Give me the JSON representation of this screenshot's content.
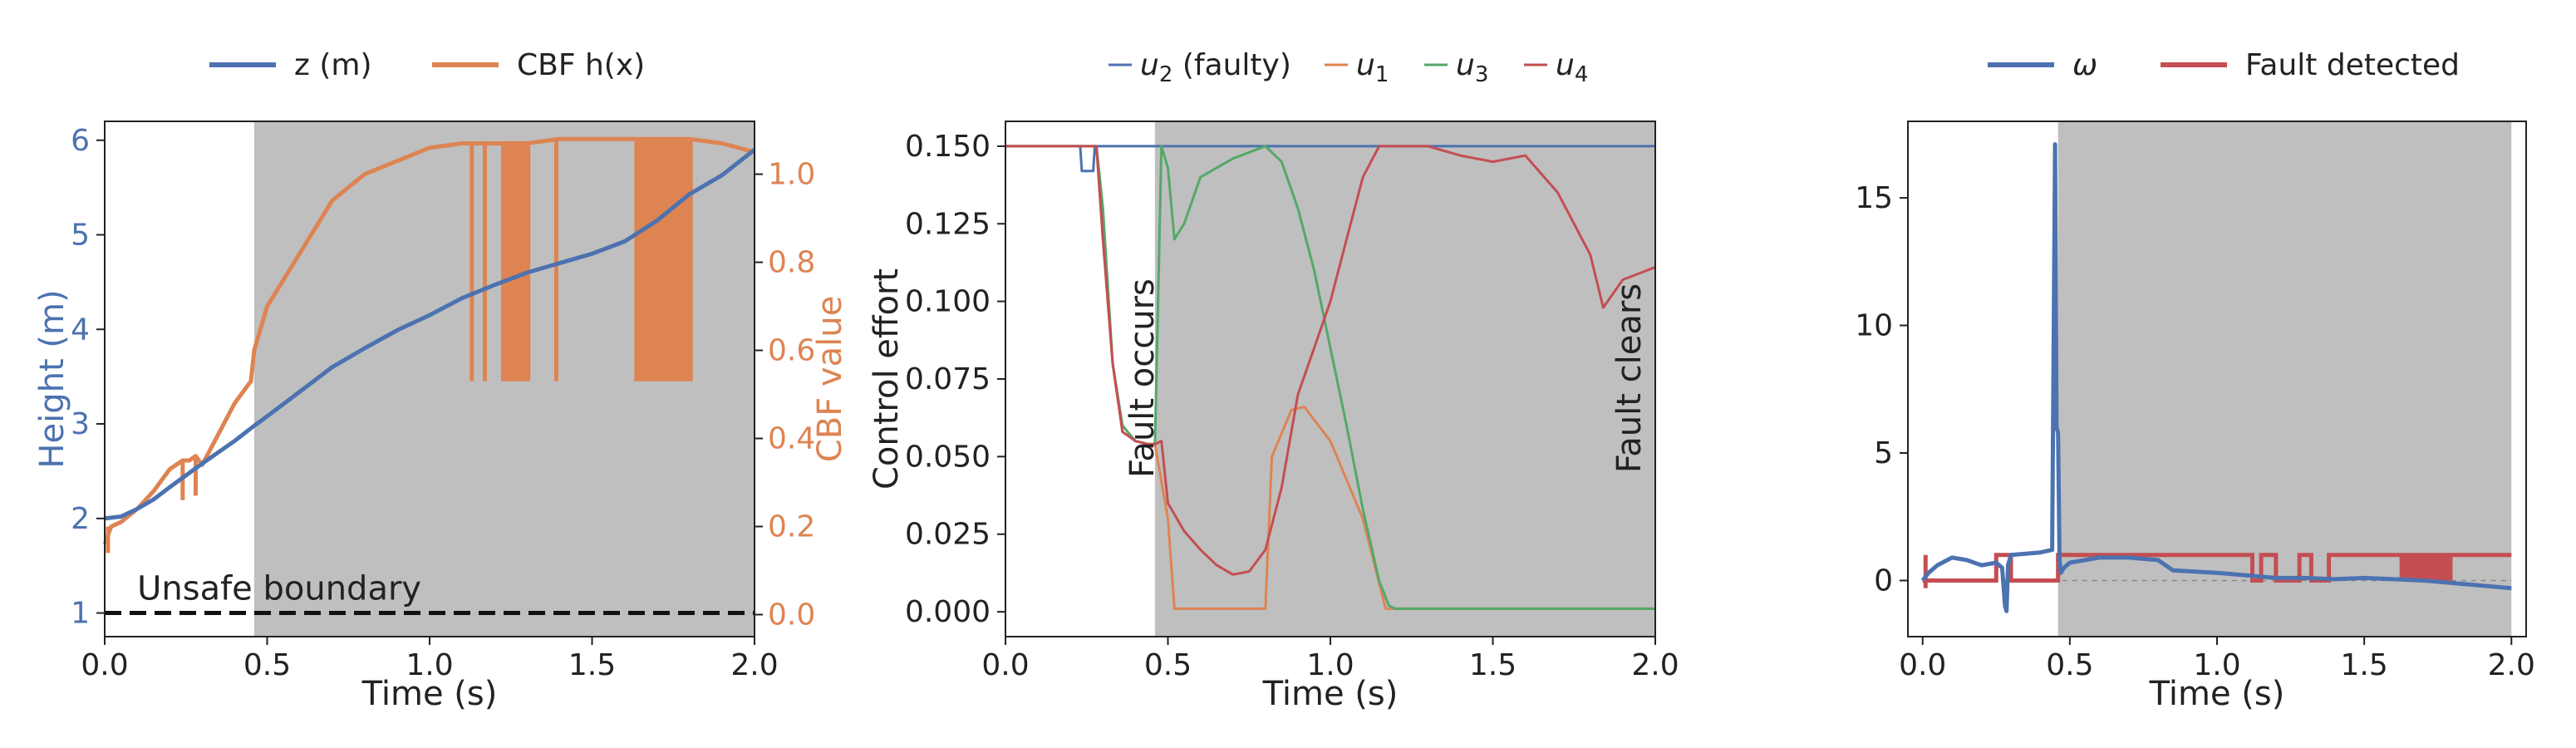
{
  "colors": {
    "blue": "#4c72b0",
    "orange": "#dd8452",
    "green": "#55a868",
    "red": "#c44e52",
    "shade": "#bfbfbf"
  },
  "chart_data": [
    {
      "type": "line",
      "xlabel": "Time (s)",
      "ylabel": "Height (m)",
      "ylabel_right": "CBF value",
      "xlim": [
        0,
        2.0
      ],
      "ylim": [
        0.75,
        6.2
      ],
      "ylim_right": [
        -0.05,
        1.12
      ],
      "xticks": [
        "0.0",
        "0.5",
        "1.0",
        "1.5",
        "2.0"
      ],
      "yticks": [
        "1",
        "2",
        "3",
        "4",
        "5",
        "6"
      ],
      "yticks_right": [
        "0.0",
        "0.2",
        "0.4",
        "0.6",
        "0.8",
        "1.0"
      ],
      "fault_window": [
        0.46,
        2.0
      ],
      "annotation": "Unsafe boundary",
      "unsafe_boundary_z": 1.0,
      "legend": {
        "placement": "top-center",
        "items": [
          "z (m)",
          "CBF h(x)"
        ]
      },
      "series": [
        {
          "name": "z (m)",
          "axis": "left",
          "color": "#4c72b0",
          "x": [
            0,
            0.05,
            0.1,
            0.15,
            0.2,
            0.3,
            0.4,
            0.46,
            0.5,
            0.6,
            0.7,
            0.8,
            0.9,
            1.0,
            1.1,
            1.2,
            1.3,
            1.4,
            1.5,
            1.6,
            1.7,
            1.8,
            1.9,
            2.0
          ],
          "y": [
            2.0,
            2.02,
            2.1,
            2.2,
            2.33,
            2.58,
            2.82,
            2.98,
            3.08,
            3.34,
            3.6,
            3.8,
            3.99,
            4.15,
            4.33,
            4.47,
            4.6,
            4.7,
            4.8,
            4.93,
            5.15,
            5.43,
            5.63,
            5.9
          ]
        },
        {
          "name": "CBF h(x)",
          "axis": "right",
          "color": "#dd8452",
          "x": [
            0,
            0.02,
            0.05,
            0.1,
            0.15,
            0.2,
            0.24,
            0.26,
            0.28,
            0.3,
            0.35,
            0.4,
            0.45,
            0.46,
            0.5,
            0.6,
            0.7,
            0.8,
            0.9,
            1.0,
            1.1,
            1.2,
            1.3,
            1.4,
            1.5,
            1.6,
            1.7,
            1.8,
            1.9,
            2.0
          ],
          "y": [
            0.16,
            0.2,
            0.21,
            0.24,
            0.28,
            0.33,
            0.35,
            0.35,
            0.36,
            0.34,
            0.41,
            0.48,
            0.53,
            0.6,
            0.7,
            0.82,
            0.94,
            1.0,
            1.03,
            1.06,
            1.07,
            1.07,
            1.07,
            1.08,
            1.08,
            1.08,
            1.08,
            1.08,
            1.07,
            1.05
          ]
        }
      ]
    },
    {
      "type": "line",
      "xlabel": "Time (s)",
      "ylabel": "Control effort",
      "xlim": [
        0,
        2.0
      ],
      "ylim": [
        -0.008,
        0.158
      ],
      "xticks": [
        "0.0",
        "0.5",
        "1.0",
        "1.5",
        "2.0"
      ],
      "yticks": [
        "0.000",
        "0.025",
        "0.050",
        "0.075",
        "0.100",
        "0.125",
        "0.150"
      ],
      "fault_window": [
        0.46,
        2.0
      ],
      "annotations": [
        "Fault occurs",
        "Fault clears"
      ],
      "legend": {
        "placement": "top-center",
        "items": [
          {
            "sym": "u",
            "sub": "2",
            "suffix": " (faulty)"
          },
          {
            "sym": "u",
            "sub": "1",
            "suffix": ""
          },
          {
            "sym": "u",
            "sub": "3",
            "suffix": ""
          },
          {
            "sym": "u",
            "sub": "4",
            "suffix": ""
          }
        ]
      },
      "series": [
        {
          "name": "u2 (faulty)",
          "color": "#4c72b0",
          "x": [
            0,
            0.23,
            0.235,
            0.27,
            0.275,
            0.44,
            0.445,
            2.0
          ],
          "y": [
            0.15,
            0.15,
            0.142,
            0.142,
            0.15,
            0.15,
            0.15,
            0.15
          ]
        },
        {
          "name": "u1",
          "color": "#dd8452",
          "x": [
            0,
            0.28,
            0.3,
            0.33,
            0.36,
            0.4,
            0.44,
            0.46,
            0.47,
            0.5,
            0.52,
            0.8,
            0.82,
            0.88,
            0.92,
            1.0,
            1.1,
            1.17,
            1.2,
            2.0
          ],
          "y": [
            0.15,
            0.15,
            0.12,
            0.08,
            0.058,
            0.055,
            0.054,
            0.054,
            0.048,
            0.03,
            0.001,
            0.001,
            0.05,
            0.065,
            0.066,
            0.055,
            0.03,
            0.001,
            0.001,
            0.001
          ]
        },
        {
          "name": "u3",
          "color": "#55a868",
          "x": [
            0,
            0.28,
            0.3,
            0.33,
            0.36,
            0.4,
            0.44,
            0.46,
            0.48,
            0.5,
            0.52,
            0.55,
            0.6,
            0.7,
            0.75,
            0.8,
            0.85,
            0.9,
            0.95,
            1.0,
            1.05,
            1.1,
            1.15,
            1.18,
            1.2,
            2.0
          ],
          "y": [
            0.15,
            0.15,
            0.13,
            0.08,
            0.06,
            0.055,
            0.054,
            0.054,
            0.15,
            0.143,
            0.12,
            0.125,
            0.14,
            0.146,
            0.148,
            0.15,
            0.145,
            0.13,
            0.11,
            0.085,
            0.06,
            0.033,
            0.01,
            0.002,
            0.001,
            0.001
          ]
        },
        {
          "name": "u4",
          "color": "#c44e52",
          "x": [
            0,
            0.28,
            0.3,
            0.33,
            0.36,
            0.4,
            0.44,
            0.46,
            0.48,
            0.5,
            0.55,
            0.6,
            0.65,
            0.7,
            0.75,
            0.8,
            0.85,
            0.9,
            0.95,
            1.0,
            1.05,
            1.1,
            1.15,
            1.2,
            1.3,
            1.4,
            1.5,
            1.6,
            1.7,
            1.8,
            1.84,
            1.9,
            2.0
          ],
          "y": [
            0.15,
            0.15,
            0.12,
            0.08,
            0.058,
            0.055,
            0.054,
            0.054,
            0.055,
            0.035,
            0.026,
            0.02,
            0.015,
            0.012,
            0.013,
            0.02,
            0.04,
            0.07,
            0.085,
            0.1,
            0.12,
            0.14,
            0.15,
            0.15,
            0.15,
            0.147,
            0.145,
            0.147,
            0.135,
            0.115,
            0.098,
            0.107,
            0.111
          ]
        }
      ]
    },
    {
      "type": "line",
      "xlim": [
        -0.05,
        2.05
      ],
      "ylim": [
        -2.2,
        18.0
      ],
      "xlabel": "Time (s)",
      "xticks": [
        "0.0",
        "0.5",
        "1.0",
        "1.5",
        "2.0"
      ],
      "yticks": [
        "0",
        "5",
        "10",
        "15"
      ],
      "fault_window": [
        0.46,
        2.0
      ],
      "legend": {
        "placement": "top-center",
        "items": [
          "ω",
          "Fault detected"
        ]
      },
      "series": [
        {
          "name": "ω",
          "color": "#4c72b0",
          "x": [
            0,
            0.02,
            0.05,
            0.1,
            0.15,
            0.2,
            0.25,
            0.27,
            0.28,
            0.285,
            0.29,
            0.3,
            0.4,
            0.44,
            0.45,
            0.455,
            0.46,
            0.465,
            0.47,
            0.48,
            0.49,
            0.5,
            0.6,
            0.7,
            0.8,
            0.85,
            1.0,
            1.1,
            1.2,
            1.3,
            1.4,
            1.5,
            1.6,
            1.7,
            1.8,
            1.9,
            2.0
          ],
          "y": [
            0,
            0.3,
            0.6,
            0.9,
            0.8,
            0.6,
            0.7,
            0.5,
            -1.0,
            -1.2,
            0.6,
            1.0,
            1.1,
            1.2,
            17.1,
            6.0,
            5.8,
            0.8,
            0.3,
            0.5,
            0.6,
            0.7,
            0.9,
            0.9,
            0.8,
            0.4,
            0.3,
            0.2,
            0.1,
            0.1,
            0.05,
            0.1,
            0.05,
            0.0,
            -0.1,
            -0.2,
            -0.3
          ]
        },
        {
          "name": "Fault detected",
          "color": "#c44e52",
          "x": [
            0,
            0.25,
            0.25,
            0.3,
            0.3,
            0.46,
            0.46,
            1.12,
            1.12,
            1.15,
            1.15,
            1.2,
            1.2,
            1.28,
            1.28,
            1.32,
            1.32,
            1.38,
            1.38,
            1.4,
            1.4,
            2.0
          ],
          "y": [
            0,
            0,
            1,
            1,
            0,
            0,
            1,
            1,
            0,
            0,
            1,
            1,
            0,
            0,
            1,
            1,
            0,
            0,
            1,
            1,
            1,
            1
          ]
        }
      ]
    }
  ]
}
